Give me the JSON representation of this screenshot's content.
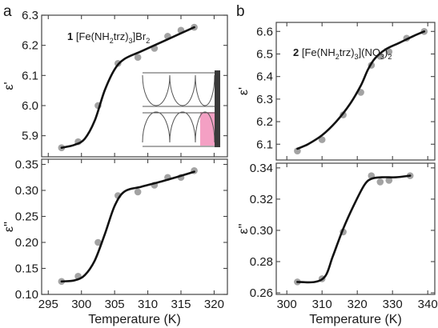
{
  "panel_labels": {
    "a": "a",
    "b": "b"
  },
  "compounds": {
    "c1": {
      "num": "1",
      "formula_pre": "[Fe(NH",
      "sub1": "2",
      "formula_mid": "trz)",
      "sub2": "3",
      "formula_post": "]Br",
      "sub3": "2"
    },
    "c2": {
      "num": "2",
      "formula_pre": "[Fe(NH",
      "sub1": "2",
      "formula_mid": "trz)",
      "sub2": "3",
      "formula_post": "](NO",
      "sub3": "3",
      "formula_end": ")",
      "sub4": "2"
    }
  },
  "inset": {
    "highlight_color": "#f4a0c4",
    "bar_color": "#3a3a3a"
  },
  "colors": {
    "points": "#a3a3a3",
    "fit_line": "#111111",
    "frame": "#444444"
  },
  "chart_data": [
    {
      "id": "a-top",
      "type": "scatter",
      "ylabel": "ε'",
      "xlabel": "",
      "xlim": [
        294,
        322
      ],
      "ylim": [
        5.83,
        6.3
      ],
      "xticks": [
        295,
        300,
        305,
        310,
        315,
        320
      ],
      "xtick_labels_shown": false,
      "yticks": [
        5.9,
        6.0,
        6.1,
        6.2,
        6.3
      ],
      "ytick_labels": [
        "5.9",
        "6.0",
        "6.1",
        "6.2",
        "6.3"
      ],
      "points": [
        [
          297,
          5.86
        ],
        [
          299.5,
          5.88
        ],
        [
          302.5,
          6.0
        ],
        [
          305.5,
          6.14
        ],
        [
          308.5,
          6.16
        ],
        [
          311,
          6.19
        ],
        [
          313,
          6.23
        ],
        [
          315,
          6.25
        ],
        [
          317,
          6.26
        ]
      ],
      "fit": [
        [
          297,
          5.86
        ],
        [
          299,
          5.87
        ],
        [
          300.5,
          5.89
        ],
        [
          302,
          5.95
        ],
        [
          303.5,
          6.05
        ],
        [
          305,
          6.12
        ],
        [
          306.5,
          6.155
        ],
        [
          309,
          6.18
        ],
        [
          312,
          6.21
        ],
        [
          315,
          6.24
        ],
        [
          317,
          6.26
        ]
      ]
    },
    {
      "id": "a-bottom",
      "type": "scatter",
      "ylabel": "ε''",
      "xlabel": "Temperature (K)",
      "xlim": [
        294,
        322
      ],
      "ylim": [
        0.1,
        0.36
      ],
      "xticks": [
        295,
        300,
        305,
        310,
        315,
        320
      ],
      "xtick_labels": [
        "295",
        "300",
        "305",
        "310",
        "315",
        "320"
      ],
      "yticks": [
        0.1,
        0.15,
        0.2,
        0.25,
        0.3,
        0.35
      ],
      "ytick_labels": [
        "0.10",
        "0.15",
        "0.20",
        "0.25",
        "0.30",
        "0.35"
      ],
      "points": [
        [
          297,
          0.125
        ],
        [
          299.5,
          0.135
        ],
        [
          302.5,
          0.2
        ],
        [
          305.5,
          0.29
        ],
        [
          308.5,
          0.297
        ],
        [
          311,
          0.31
        ],
        [
          313,
          0.325
        ],
        [
          315,
          0.325
        ],
        [
          317,
          0.338
        ]
      ],
      "fit": [
        [
          297,
          0.125
        ],
        [
          299,
          0.127
        ],
        [
          300.5,
          0.137
        ],
        [
          302,
          0.165
        ],
        [
          303.5,
          0.215
        ],
        [
          305,
          0.27
        ],
        [
          306.5,
          0.298
        ],
        [
          309,
          0.307
        ],
        [
          312,
          0.317
        ],
        [
          315,
          0.328
        ],
        [
          317,
          0.336
        ]
      ]
    },
    {
      "id": "b-top",
      "type": "scatter",
      "ylabel": "ε'",
      "xlabel": "",
      "xlim": [
        297,
        342
      ],
      "ylim": [
        6.03,
        6.64
      ],
      "xticks": [
        300,
        310,
        320,
        330,
        340
      ],
      "xtick_labels_shown": false,
      "yticks": [
        6.1,
        6.2,
        6.3,
        6.4,
        6.5,
        6.6
      ],
      "ytick_labels": [
        "6.1",
        "6.2",
        "6.3",
        "6.4",
        "6.5",
        "6.6"
      ],
      "points": [
        [
          303,
          6.07
        ],
        [
          310,
          6.12
        ],
        [
          316,
          6.23
        ],
        [
          321,
          6.33
        ],
        [
          324,
          6.45
        ],
        [
          326.5,
          6.49
        ],
        [
          329,
          6.51
        ],
        [
          334,
          6.57
        ],
        [
          339,
          6.6
        ]
      ],
      "fit": [
        [
          303,
          6.08
        ],
        [
          306,
          6.1
        ],
        [
          310,
          6.14
        ],
        [
          314,
          6.2
        ],
        [
          318,
          6.28
        ],
        [
          321,
          6.36
        ],
        [
          323,
          6.43
        ],
        [
          325,
          6.48
        ],
        [
          328,
          6.52
        ],
        [
          332,
          6.55
        ],
        [
          336,
          6.58
        ],
        [
          339,
          6.6
        ]
      ]
    },
    {
      "id": "b-bottom",
      "type": "scatter",
      "ylabel": "ε''",
      "xlabel": "Temperature (K)",
      "xlim": [
        297,
        342
      ],
      "ylim": [
        0.259,
        0.343
      ],
      "xticks": [
        300,
        310,
        320,
        330,
        340
      ],
      "xtick_labels": [
        "300",
        "310",
        "320",
        "330",
        "340"
      ],
      "yticks": [
        0.26,
        0.28,
        0.3,
        0.32,
        0.34
      ],
      "ytick_labels": [
        "0.26",
        "0.28",
        "0.30",
        "0.32",
        "0.34"
      ],
      "points": [
        [
          303,
          0.267
        ],
        [
          310,
          0.269
        ],
        [
          316,
          0.299
        ],
        [
          324,
          0.335
        ],
        [
          326.5,
          0.331
        ],
        [
          329,
          0.332
        ],
        [
          335,
          0.335
        ]
      ],
      "fit": [
        [
          303,
          0.267
        ],
        [
          308,
          0.267
        ],
        [
          311,
          0.271
        ],
        [
          313,
          0.283
        ],
        [
          316,
          0.301
        ],
        [
          319,
          0.316
        ],
        [
          322,
          0.329
        ],
        [
          324,
          0.333
        ],
        [
          327,
          0.334
        ],
        [
          331,
          0.334
        ],
        [
          335,
          0.335
        ]
      ]
    }
  ]
}
